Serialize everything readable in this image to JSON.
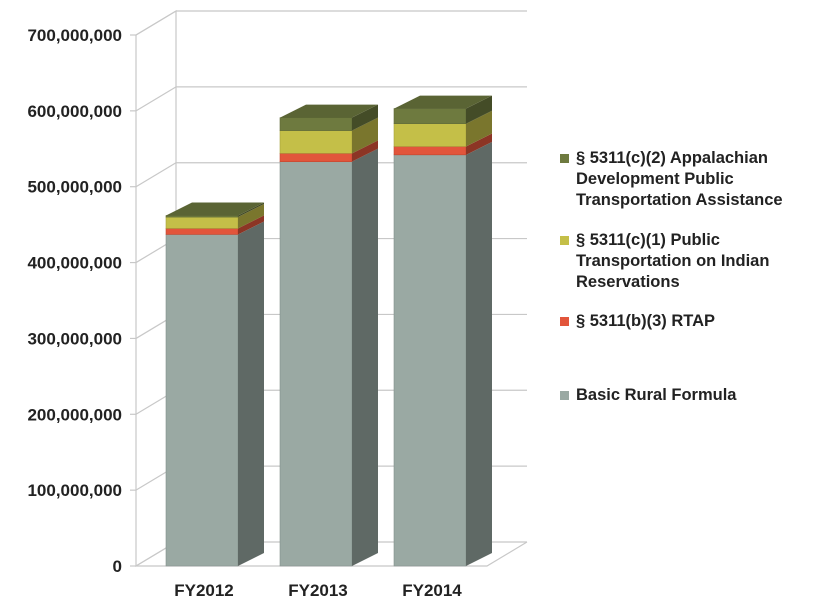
{
  "chart_data": {
    "type": "bar",
    "stacked": true,
    "three_d": true,
    "title": "",
    "xlabel": "",
    "ylabel": "",
    "categories": [
      "FY2012",
      "FY2013",
      "FY2014"
    ],
    "ylim": [
      0,
      700000000
    ],
    "y_ticks": [
      0,
      100000000,
      200000000,
      300000000,
      400000000,
      500000000,
      600000000,
      700000000
    ],
    "y_tick_labels": [
      "0",
      "100,000,000",
      "200,000,000",
      "300,000,000",
      "400,000,000",
      "500,000,000",
      "600,000,000",
      "700,000,000"
    ],
    "grid": true,
    "legend_position": "right",
    "series": [
      {
        "name": "Basic Rural Formula",
        "color": "#9aa9a3",
        "values": [
          437000000,
          533000000,
          542000000
        ]
      },
      {
        "name": "§ 5311(b)(3) RTAP",
        "color": "#e2553b",
        "values": [
          8000000,
          11000000,
          11000000
        ]
      },
      {
        "name": "§ 5311(c)(1) Public Transportation on Indian Reservations",
        "color": "#c4bf48",
        "values": [
          15000000,
          30000000,
          30000000
        ]
      },
      {
        "name": "§ 5311(c)(2) Appalachian Development Public Transportation Assistance",
        "color": "#6e7a3f",
        "values": [
          2000000,
          17000000,
          20000000
        ]
      }
    ]
  },
  "legend_order": [
    3,
    2,
    1,
    0
  ]
}
